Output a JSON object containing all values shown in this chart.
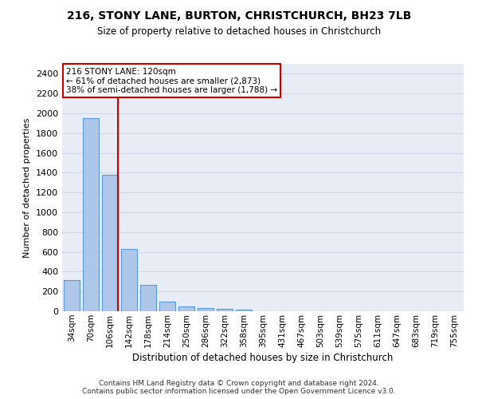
{
  "title": "216, STONY LANE, BURTON, CHRISTCHURCH, BH23 7LB",
  "subtitle": "Size of property relative to detached houses in Christchurch",
  "xlabel": "Distribution of detached houses by size in Christchurch",
  "ylabel": "Number of detached properties",
  "footer_line1": "Contains HM Land Registry data © Crown copyright and database right 2024.",
  "footer_line2": "Contains public sector information licensed under the Open Government Licence v3.0.",
  "categories": [
    "34sqm",
    "70sqm",
    "106sqm",
    "142sqm",
    "178sqm",
    "214sqm",
    "250sqm",
    "286sqm",
    "322sqm",
    "358sqm",
    "395sqm",
    "431sqm",
    "467sqm",
    "503sqm",
    "539sqm",
    "575sqm",
    "611sqm",
    "647sqm",
    "683sqm",
    "719sqm",
    "755sqm"
  ],
  "values": [
    315,
    1950,
    1380,
    630,
    270,
    100,
    48,
    35,
    28,
    20,
    0,
    0,
    0,
    0,
    0,
    0,
    0,
    0,
    0,
    0,
    0
  ],
  "bar_color": "#aec6e8",
  "bar_edge_color": "#5b9bd5",
  "grid_color": "#d0d8e8",
  "background_color": "#e8edf5",
  "marker_bin_index": 2,
  "marker_label": "216 STONY LANE: 120sqm",
  "marker_pct_text": "← 61% of detached houses are smaller (2,873)",
  "marker_semi_text": "38% of semi-detached houses are larger (1,788) →",
  "marker_color": "#cc0000",
  "ylim": [
    0,
    2500
  ],
  "yticks": [
    0,
    200,
    400,
    600,
    800,
    1000,
    1200,
    1400,
    1600,
    1800,
    2000,
    2200,
    2400
  ]
}
